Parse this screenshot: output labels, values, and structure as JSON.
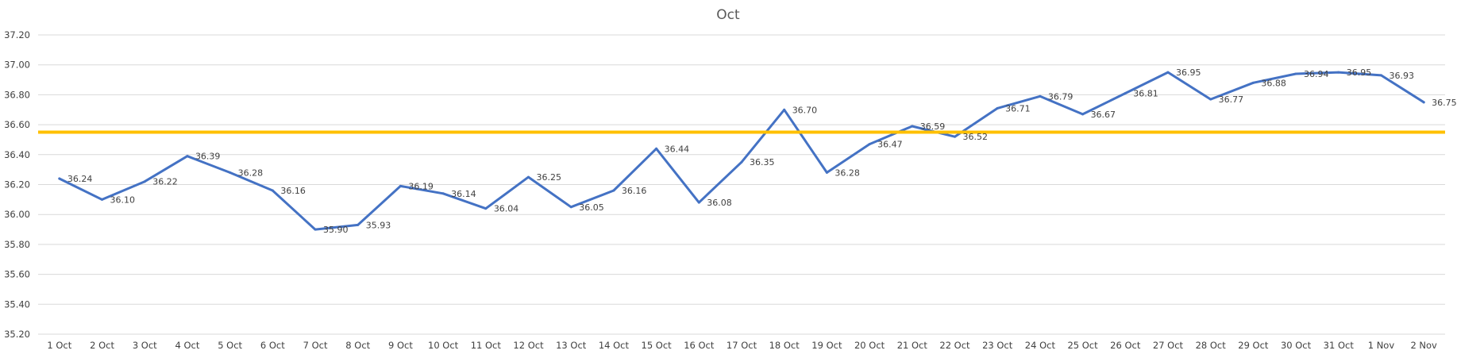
{
  "chart_data": {
    "type": "line",
    "title": "Oct",
    "xlabel": "",
    "ylabel": "",
    "ylim": [
      35.2,
      37.2
    ],
    "yticks": [
      "35.20",
      "35.40",
      "35.60",
      "35.80",
      "36.00",
      "36.20",
      "36.40",
      "36.60",
      "36.80",
      "37.00",
      "37.20"
    ],
    "grid": true,
    "legend": "none",
    "categories": [
      "1 Oct",
      "2 Oct",
      "3 Oct",
      "4 Oct",
      "5 Oct",
      "6 Oct",
      "7 Oct",
      "8 Oct",
      "9 Oct",
      "10 Oct",
      "11 Oct",
      "12 Oct",
      "13 Oct",
      "14 Oct",
      "15 Oct",
      "16 Oct",
      "17 Oct",
      "18 Oct",
      "19 Oct",
      "20 Oct",
      "21 Oct",
      "22 Oct",
      "23 Oct",
      "24 Oct",
      "25 Oct",
      "26 Oct",
      "27 Oct",
      "28 Oct",
      "29 Oct",
      "30 Oct",
      "31 Oct",
      "1 Nov",
      "2 Nov"
    ],
    "series": [
      {
        "color": "#4472c4",
        "values": [
          36.24,
          36.1,
          36.22,
          36.39,
          36.28,
          36.16,
          35.9,
          35.93,
          36.19,
          36.14,
          36.04,
          36.25,
          36.05,
          36.16,
          36.44,
          36.08,
          36.35,
          36.7,
          36.28,
          36.47,
          36.59,
          36.52,
          36.71,
          36.79,
          36.67,
          36.81,
          36.95,
          36.77,
          36.88,
          36.94,
          36.95,
          36.93,
          36.75
        ],
        "labels": [
          "36.24",
          "36.10",
          "36.22",
          "36.39",
          "36.28",
          "36.16",
          "35.90",
          "35.93",
          "36.19",
          "36.14",
          "36.04",
          "36.25",
          "36.05",
          "36.16",
          "36.44",
          "36.08",
          "36.35",
          "36.70",
          "36.28",
          "36.47",
          "36.59",
          "36.52",
          "36.71",
          "36.79",
          "36.67",
          "36.81",
          "36.95",
          "36.77",
          "36.88",
          "36.94",
          "36.95",
          "36.93",
          "36.75"
        ]
      }
    ],
    "reference_line": {
      "value": 36.55,
      "color": "#ffc000"
    }
  }
}
